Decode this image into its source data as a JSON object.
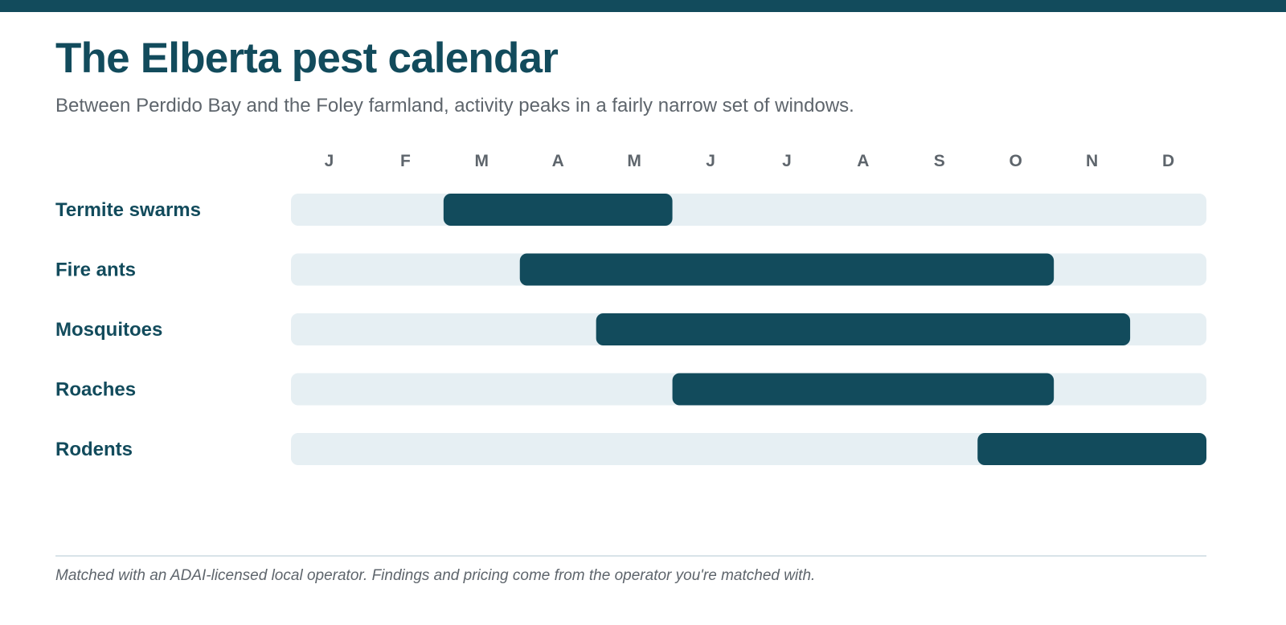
{
  "header": {
    "title": "The Elberta pest calendar",
    "subtitle": "Between Perdido Bay and the Foley farmland, activity peaks in a fairly narrow set of windows."
  },
  "colors": {
    "brand": "#124b5c",
    "track": "#e6eff3",
    "muted_text": "#5e656c",
    "rule": "#d8e3e8"
  },
  "chart_data": {
    "type": "gantt",
    "months": [
      "J",
      "F",
      "M",
      "A",
      "M",
      "J",
      "J",
      "A",
      "S",
      "O",
      "N",
      "D"
    ],
    "rows": [
      {
        "label": "Termite swarms",
        "start_month": 3,
        "end_month": 5
      },
      {
        "label": "Fire ants",
        "start_month": 4,
        "end_month": 10
      },
      {
        "label": "Mosquitoes",
        "start_month": 5,
        "end_month": 11
      },
      {
        "label": "Roaches",
        "start_month": 6,
        "end_month": 10
      },
      {
        "label": "Rodents",
        "start_month": 10,
        "end_month": 12
      }
    ]
  },
  "footer": {
    "note": "Matched with an ADAI-licensed local operator. Findings and pricing come from the operator you're matched with."
  }
}
